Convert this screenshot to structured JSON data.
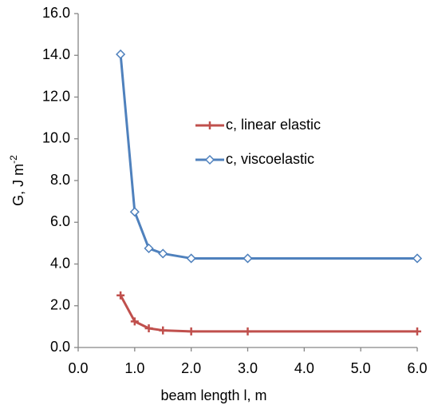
{
  "chart_data": {
    "type": "line",
    "x_label": "beam length l, m",
    "y_label": {
      "text": "G, J m",
      "superscript": "-2"
    },
    "x": [
      0.75,
      1.0,
      1.25,
      1.5,
      2.0,
      3.0,
      6.0
    ],
    "series": [
      {
        "name": "c, linear elastic",
        "color": "#c0504d",
        "marker": "plus",
        "values": [
          2.5,
          1.25,
          0.92,
          0.82,
          0.77,
          0.77,
          0.77
        ]
      },
      {
        "name": "c, viscoelastic",
        "color": "#4f81bd",
        "marker": "diamond",
        "values": [
          14.05,
          6.5,
          4.75,
          4.5,
          4.27,
          4.27,
          4.27
        ]
      }
    ],
    "xlim": [
      0,
      6
    ],
    "xticks": [
      {
        "value": 0,
        "label": "0.0"
      },
      {
        "value": 1,
        "label": "1.0"
      },
      {
        "value": 2,
        "label": "2.0"
      },
      {
        "value": 3,
        "label": "3.0"
      },
      {
        "value": 4,
        "label": "4.0"
      },
      {
        "value": 5,
        "label": "5.0"
      },
      {
        "value": 6,
        "label": "6.0"
      }
    ],
    "ylim": [
      0,
      16
    ],
    "yticks": [
      {
        "value": 0,
        "label": "0.0"
      },
      {
        "value": 2,
        "label": "2.0"
      },
      {
        "value": 4,
        "label": "4.0"
      },
      {
        "value": 6,
        "label": "6.0"
      },
      {
        "value": 8,
        "label": "8.0"
      },
      {
        "value": 10,
        "label": "10.0"
      },
      {
        "value": 12,
        "label": "12.0"
      },
      {
        "value": 14,
        "label": "14.0"
      },
      {
        "value": 16,
        "label": "16.0"
      }
    ],
    "grid": false
  }
}
